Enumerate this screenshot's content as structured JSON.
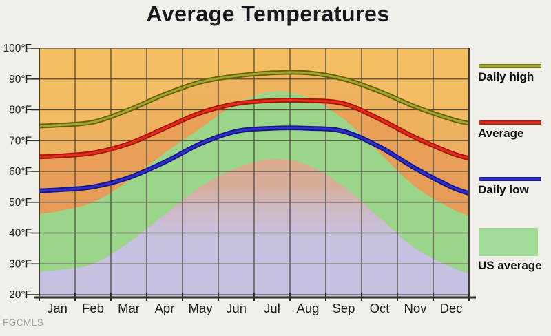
{
  "title": "Average Temperatures",
  "watermark": "FGCMLS",
  "legend": [
    {
      "label": "Daily high",
      "type": "line",
      "color_dark": "#62620a",
      "color_light": "#a6a62c"
    },
    {
      "label": "Average",
      "type": "line",
      "color_dark": "#a81408",
      "color_light": "#e22d1d"
    },
    {
      "label": "Daily low",
      "type": "line",
      "color_dark": "#14148e",
      "color_light": "#3030c4"
    },
    {
      "label": "US average",
      "type": "area",
      "color": "#a4dd9a"
    }
  ],
  "chart_data": {
    "type": "line",
    "title": "Average Temperatures",
    "categories": [
      "Jan",
      "Feb",
      "Mar",
      "Apr",
      "May",
      "Jun",
      "Jul",
      "Aug",
      "Sep",
      "Oct",
      "Nov",
      "Dec"
    ],
    "y_tick_labels": [
      "100°F",
      "90°F",
      "80°F",
      "70°F",
      "60°F",
      "50°F",
      "40°F",
      "30°F",
      "20°F"
    ],
    "y_tick_values": [
      100,
      90,
      80,
      70,
      60,
      50,
      40,
      30,
      20
    ],
    "ylim": [
      20,
      100
    ],
    "unit": "°F",
    "grid": true,
    "legend_position": "right",
    "series": [
      {
        "name": "Daily high",
        "type": "line",
        "color_outer": "#62620a",
        "color_inner": "#a6a62c",
        "values": [
          75,
          76,
          80,
          85,
          89,
          91,
          92,
          92,
          90,
          86,
          81,
          77
        ]
      },
      {
        "name": "Average",
        "type": "line",
        "color_outer": "#a81408",
        "color_inner": "#e22d1d",
        "values": [
          65,
          66,
          69,
          74,
          79,
          82,
          83,
          83,
          82,
          77,
          71,
          66
        ]
      },
      {
        "name": "Daily low",
        "type": "line",
        "color_outer": "#14148e",
        "color_inner": "#3030c4",
        "values": [
          54,
          55,
          58,
          63,
          69,
          73,
          74,
          74,
          73,
          68,
          61,
          55
        ]
      },
      {
        "name": "US average high",
        "type": "band-top",
        "color": "#97d88d",
        "values": [
          47,
          50,
          57,
          66,
          74,
          82,
          86,
          84,
          77,
          66,
          55,
          48
        ]
      },
      {
        "name": "US average low",
        "type": "band-bottom",
        "color": "#c6c3e6",
        "values": [
          28,
          30,
          37,
          46,
          55,
          61,
          64,
          62,
          55,
          45,
          35,
          29
        ]
      }
    ],
    "style": {
      "plot_bg_top": "#f5bf62",
      "plot_bg_bottom": "#edb066",
      "grid_color": "#4c4a40",
      "green_band": "#97d88d",
      "lavender": "#c5c3e8",
      "tan_overlap": "#dcae90",
      "salmon_tint": "rgba(205,80,50,0.17)",
      "salmon_tint_light": "rgba(200,95,60,0.10)",
      "axis_color": "#2f2d27",
      "border_color": "#3c3a32",
      "label_color": "#1b1b1b"
    }
  }
}
